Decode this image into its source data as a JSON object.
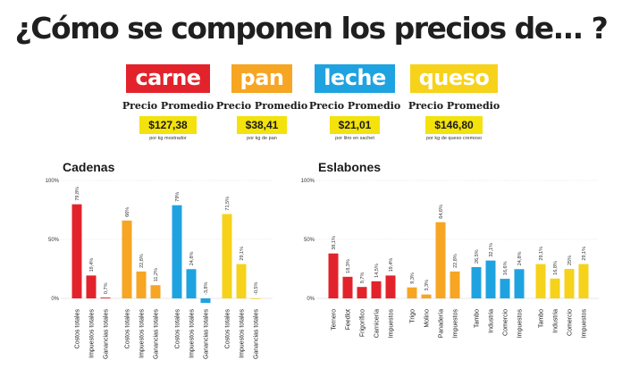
{
  "title": "¿Cómo se componen los precios de... ?",
  "products": [
    {
      "name": "carne",
      "label": "Precio Promedio",
      "price": "$127,38",
      "unit": "por kg mostrador",
      "color": "#e3232b"
    },
    {
      "name": "pan",
      "label": "Precio Promedio",
      "price": "$38,41",
      "unit": "por kg de pan",
      "color": "#f6a623"
    },
    {
      "name": "leche",
      "label": "Precio Promedio",
      "price": "$21,01",
      "unit": "por litro en sachet",
      "color": "#1fa3e0"
    },
    {
      "name": "queso",
      "label": "Precio Promedio",
      "price": "$146,80",
      "unit": "por kg de queso cremoso",
      "color": "#f6d21a"
    }
  ],
  "chart_data": [
    {
      "type": "bar",
      "title": "Cadenas",
      "ylim": [
        0,
        100
      ],
      "yticks": [
        "0%",
        "50%",
        "100%"
      ],
      "categories": [
        "Costos totales",
        "Impuestos totales",
        "Ganancias totales",
        "Costos totales",
        "Impuestos totales",
        "Ganancias totales",
        "Costos totales",
        "Impuestos totales",
        "Ganancias totales",
        "Costos totales",
        "Impuestos totales",
        "Ganancias totales"
      ],
      "values": [
        79.8,
        19.4,
        0.7,
        66,
        22.8,
        11.2,
        79,
        24.8,
        -3.8,
        71.5,
        29.1,
        -0.5
      ],
      "data_labels": [
        "79,8%",
        "19,4%",
        "0,7%",
        "66%",
        "22,8%",
        "11,2%",
        "79%",
        "24,8%",
        "-3,8%",
        "71,5%",
        "29,1%",
        "-0,5%"
      ],
      "group_colors": [
        "#e3232b",
        "#f6a623",
        "#1fa3e0",
        "#f6d21a"
      ],
      "group_sizes": [
        3,
        3,
        3,
        3
      ]
    },
    {
      "type": "bar",
      "title": "Eslabones",
      "ylim": [
        0,
        100
      ],
      "yticks": [
        "0%",
        "50%",
        "100%"
      ],
      "categories": [
        "Ternero",
        "Feedlot",
        "Frigorífico",
        "Carnicería",
        "Impuestos",
        "Trigo",
        "Molino",
        "Panadería",
        "Impuestos",
        "Tambo",
        "Industria",
        "Comercio",
        "Impuestos",
        "Tambo",
        "Industria",
        "Comercio",
        "Impuestos"
      ],
      "values": [
        38.1,
        18.3,
        9.7,
        14.5,
        19.4,
        9.3,
        3.3,
        64.6,
        22.8,
        26.5,
        32.1,
        16.6,
        24.8,
        29.1,
        16.8,
        25,
        29.1
      ],
      "data_labels": [
        "38,1%",
        "18,3%",
        "9,7%",
        "14,5%",
        "19,4%",
        "9,3%",
        "3,3%",
        "64,6%",
        "22,8%",
        "26,5%",
        "32,1%",
        "16,6%",
        "24,8%",
        "29,1%",
        "16,8%",
        "25%",
        "29,1%"
      ],
      "group_colors": [
        "#e3232b",
        "#f6a623",
        "#1fa3e0",
        "#f6d21a"
      ],
      "group_sizes": [
        5,
        4,
        4,
        4
      ]
    }
  ]
}
